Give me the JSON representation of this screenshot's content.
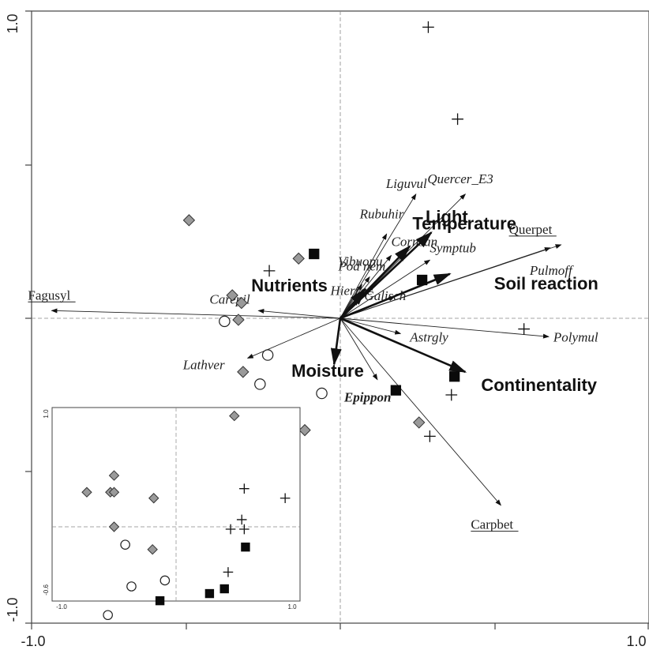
{
  "chart_data": [
    {
      "type": "scatter",
      "title": "",
      "xlabel": "",
      "ylabel": "",
      "xlim": [
        -1.0,
        1.0
      ],
      "ylim": [
        -1.0,
        1.0
      ],
      "x_tick_labels": [
        "-1.0",
        "1.0"
      ],
      "y_tick_labels": [
        "1.0",
        "-1.0"
      ],
      "grid": false,
      "zero_lines": true,
      "species_arrows": [
        {
          "name": "Liguvul",
          "x": 0.49,
          "y": 0.81,
          "underline": false,
          "bold": false
        },
        {
          "name": "Quercer_E3",
          "x": 0.81,
          "y": 0.81,
          "underline": false,
          "bold": false
        },
        {
          "name": "Rubuhir",
          "x": 0.3,
          "y": 0.55,
          "underline": false,
          "bold": false
        },
        {
          "name": "Cornsan",
          "x": 0.33,
          "y": 0.41,
          "underline": false,
          "bold": false
        },
        {
          "name": "Symptub",
          "x": 0.58,
          "y": 0.38,
          "underline": false,
          "bold": false
        },
        {
          "name": "Vibuopu",
          "x": 0.19,
          "y": 0.27,
          "underline": false,
          "bold": false
        },
        {
          "name": "Pod nem",
          "x": 0.14,
          "y": 0.22,
          "underline": false,
          "bold": false
        },
        {
          "name": "Hierrac",
          "x": 0.12,
          "y": 0.12,
          "underline": false,
          "bold": false
        },
        {
          "name": "Galisch",
          "x": 0.35,
          "y": 0.14,
          "underline": false,
          "bold": false
        },
        {
          "name": "Pulmoff",
          "x": 1.36,
          "y": 0.46,
          "underline": false,
          "bold": false
        },
        {
          "name": "Querpet",
          "x": 1.43,
          "y": 0.48,
          "underline": true,
          "bold": false
        },
        {
          "name": "Fagusyl",
          "x": -1.87,
          "y": 0.05,
          "underline": true,
          "bold": false
        },
        {
          "name": "Carepil",
          "x": -0.53,
          "y": 0.05,
          "underline": false,
          "bold": false
        },
        {
          "name": "Polymul",
          "x": 1.35,
          "y": -0.12,
          "underline": false,
          "bold": false
        },
        {
          "name": "Astrgly",
          "x": 0.39,
          "y": -0.1,
          "underline": false,
          "bold": false
        },
        {
          "name": "Lathver",
          "x": -0.6,
          "y": -0.26,
          "underline": false,
          "bold": false
        },
        {
          "name": "Epippon",
          "x": 0.24,
          "y": -0.4,
          "underline": false,
          "bold": true
        },
        {
          "name": "Carpbet",
          "x": 1.04,
          "y": -1.22,
          "underline": true,
          "bold": false
        }
      ],
      "env_arrows": [
        {
          "name": "Light",
          "x": 0.45,
          "y": 0.47
        },
        {
          "name": "Temperature",
          "x": 0.59,
          "y": 0.56
        },
        {
          "name": "Nutrients",
          "x": 0.16,
          "y": 0.19
        },
        {
          "name": "Soil reaction",
          "x": 0.71,
          "y": 0.29
        },
        {
          "name": "Moisture",
          "x": -0.04,
          "y": -0.3
        },
        {
          "name": "Continentality",
          "x": 0.81,
          "y": -0.35
        }
      ],
      "samples": {
        "gray_diamond": [
          [
            -0.98,
            0.64
          ],
          [
            -0.27,
            0.39
          ],
          [
            -0.7,
            0.15
          ],
          [
            -0.64,
            0.1
          ],
          [
            -0.66,
            -0.01
          ],
          [
            -0.63,
            -0.35
          ],
          [
            -0.23,
            -0.73
          ],
          [
            0.51,
            -0.68
          ]
        ],
        "open_circle": [
          [
            -0.75,
            -0.02
          ],
          [
            -0.47,
            -0.24
          ],
          [
            -0.52,
            -0.43
          ],
          [
            -0.12,
            -0.49
          ]
        ],
        "black_square": [
          [
            -0.17,
            0.42
          ],
          [
            0.53,
            0.25
          ],
          [
            0.36,
            -0.47
          ],
          [
            0.74,
            -0.38
          ]
        ],
        "plus": [
          [
            0.57,
            1.9
          ],
          [
            0.76,
            1.3
          ],
          [
            -0.46,
            0.31
          ],
          [
            1.19,
            -0.07
          ],
          [
            0.72,
            -0.5
          ],
          [
            0.58,
            -0.77
          ]
        ]
      }
    },
    {
      "type": "scatter",
      "title": "",
      "xlabel": "",
      "ylabel": "",
      "xlim": [
        -1.0,
        1.0
      ],
      "ylim": [
        -0.6,
        1.0
      ],
      "x_tick_labels": [
        "-1.0",
        "1.0"
      ],
      "y_tick_labels": [
        "1.0",
        "-0.6"
      ],
      "zero_lines": true,
      "samples": {
        "gray_diamond": [
          [
            0.47,
            0.93
          ],
          [
            -0.5,
            0.43
          ],
          [
            -0.53,
            0.29
          ],
          [
            -0.72,
            0.29
          ],
          [
            -0.5,
            0.29
          ],
          [
            -0.18,
            0.24
          ],
          [
            -0.5,
            0.0
          ],
          [
            -0.19,
            -0.19
          ]
        ],
        "open_circle": [
          [
            -0.41,
            -0.15
          ],
          [
            -0.09,
            -0.45
          ],
          [
            -0.36,
            -0.5
          ],
          [
            -0.55,
            -0.74
          ]
        ],
        "black_square": [
          [
            -0.13,
            -0.62
          ],
          [
            0.27,
            -0.56
          ],
          [
            0.39,
            -0.52
          ],
          [
            0.56,
            -0.17
          ]
        ],
        "plus": [
          [
            0.55,
            0.32
          ],
          [
            0.88,
            0.24
          ],
          [
            0.53,
            0.06
          ],
          [
            0.44,
            -0.02
          ],
          [
            0.55,
            -0.02
          ],
          [
            0.42,
            -0.38
          ]
        ]
      }
    }
  ]
}
